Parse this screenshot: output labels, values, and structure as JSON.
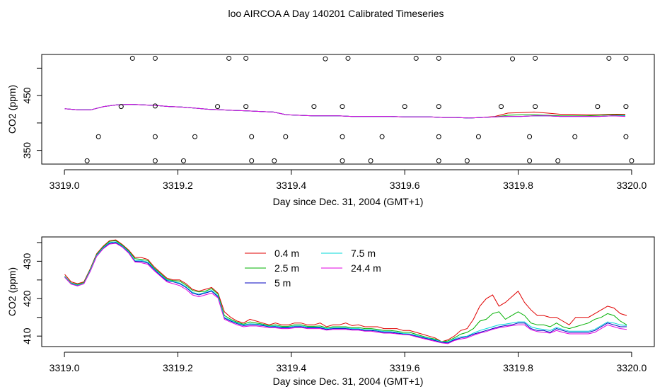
{
  "figure": {
    "title": "loo AIRCOA A  Day 140201  Calibrated Timeseries"
  },
  "colors": {
    "0.4 m": "#e00000",
    "2.5 m": "#00b000",
    "5 m": "#0000c0",
    "7.5 m": "#00d8d8",
    "24.4 m": "#e000e0"
  },
  "chart_data": [
    {
      "id": "top",
      "type": "line+scatter",
      "title": "",
      "xlabel": "Day since Dec. 31, 2004 (GMT+1)",
      "ylabel": "CO2 (ppm)",
      "xlim": [
        3318.96,
        3320.04
      ],
      "ylim": [
        325,
        525
      ],
      "xticks": [
        3319.0,
        3319.2,
        3319.4,
        3319.6,
        3319.8,
        3320.0
      ],
      "xtick_labels": [
        "3319.0",
        "3319.2",
        "3319.4",
        "3319.6",
        "3319.8",
        "3320.0"
      ],
      "yticks": [
        350,
        400,
        450,
        500
      ],
      "ytick_labels": [
        "350",
        "",
        "450",
        ""
      ],
      "series": [
        {
          "name": "0.4 m",
          "values": [
            426,
            424,
            424,
            430,
            433,
            434,
            433,
            432,
            430,
            429,
            427,
            425,
            424,
            423,
            422,
            421,
            420,
            415,
            414,
            413,
            413,
            413,
            412,
            412,
            412,
            412,
            411,
            411,
            411,
            410,
            410,
            409,
            410,
            412,
            418,
            419,
            420,
            418,
            416,
            416,
            415,
            415,
            416,
            416
          ]
        },
        {
          "name": "2.5 m",
          "values": [
            426,
            424,
            424,
            430,
            433,
            434,
            433,
            432,
            430,
            429,
            427,
            425,
            424,
            423,
            422,
            421,
            420,
            415,
            414,
            413,
            413,
            413,
            412,
            412,
            412,
            412,
            411,
            411,
            411,
            410,
            410,
            409,
            410,
            411,
            414,
            415,
            415,
            414,
            413,
            413,
            413,
            414,
            415,
            414
          ]
        },
        {
          "name": "5 m",
          "values": [
            426,
            424,
            424,
            430,
            433,
            434,
            433,
            432,
            430,
            429,
            427,
            425,
            424,
            423,
            422,
            421,
            420,
            415,
            414,
            413,
            413,
            413,
            412,
            412,
            412,
            412,
            411,
            411,
            411,
            410,
            410,
            409,
            410,
            411,
            412,
            412,
            413,
            413,
            412,
            412,
            412,
            412,
            413,
            413
          ]
        },
        {
          "name": "7.5 m",
          "values": [
            426,
            424,
            424,
            430,
            433,
            434,
            433,
            432,
            430,
            429,
            427,
            425,
            424,
            423,
            422,
            421,
            420,
            415,
            414,
            413,
            413,
            413,
            412,
            412,
            412,
            412,
            411,
            411,
            411,
            410,
            410,
            409,
            410,
            411,
            412,
            412,
            413,
            413,
            412,
            412,
            412,
            412,
            413,
            413
          ]
        },
        {
          "name": "24.4 m",
          "values": [
            426,
            424,
            424,
            430,
            433,
            434,
            433,
            432,
            430,
            429,
            427,
            425,
            424,
            423,
            422,
            421,
            420,
            415,
            414,
            413,
            413,
            413,
            412,
            412,
            412,
            412,
            411,
            411,
            411,
            410,
            410,
            409,
            410,
            411,
            412,
            412,
            413,
            413,
            412,
            412,
            412,
            412,
            413,
            412
          ]
        }
      ],
      "points": [
        {
          "x": 3319.12,
          "y": 518
        },
        {
          "x": 3319.16,
          "y": 518
        },
        {
          "x": 3319.29,
          "y": 518
        },
        {
          "x": 3319.32,
          "y": 518
        },
        {
          "x": 3319.46,
          "y": 517
        },
        {
          "x": 3319.5,
          "y": 518
        },
        {
          "x": 3319.62,
          "y": 518
        },
        {
          "x": 3319.66,
          "y": 518
        },
        {
          "x": 3319.79,
          "y": 517
        },
        {
          "x": 3319.83,
          "y": 518
        },
        {
          "x": 3319.96,
          "y": 518
        },
        {
          "x": 3319.99,
          "y": 518
        },
        {
          "x": 3319.1,
          "y": 430
        },
        {
          "x": 3319.16,
          "y": 431
        },
        {
          "x": 3319.27,
          "y": 430
        },
        {
          "x": 3319.32,
          "y": 430
        },
        {
          "x": 3319.44,
          "y": 430
        },
        {
          "x": 3319.49,
          "y": 430
        },
        {
          "x": 3319.6,
          "y": 430
        },
        {
          "x": 3319.66,
          "y": 430
        },
        {
          "x": 3319.77,
          "y": 430
        },
        {
          "x": 3319.83,
          "y": 430
        },
        {
          "x": 3319.94,
          "y": 430
        },
        {
          "x": 3319.99,
          "y": 430
        },
        {
          "x": 3319.06,
          "y": 375
        },
        {
          "x": 3319.16,
          "y": 375
        },
        {
          "x": 3319.23,
          "y": 375
        },
        {
          "x": 3319.33,
          "y": 375
        },
        {
          "x": 3319.39,
          "y": 375
        },
        {
          "x": 3319.49,
          "y": 375
        },
        {
          "x": 3319.56,
          "y": 375
        },
        {
          "x": 3319.66,
          "y": 375
        },
        {
          "x": 3319.73,
          "y": 375
        },
        {
          "x": 3319.82,
          "y": 375
        },
        {
          "x": 3319.9,
          "y": 375
        },
        {
          "x": 3319.99,
          "y": 375
        },
        {
          "x": 3319.04,
          "y": 331
        },
        {
          "x": 3319.16,
          "y": 331
        },
        {
          "x": 3319.21,
          "y": 331
        },
        {
          "x": 3319.33,
          "y": 331
        },
        {
          "x": 3319.37,
          "y": 331
        },
        {
          "x": 3319.49,
          "y": 331
        },
        {
          "x": 3319.54,
          "y": 331
        },
        {
          "x": 3319.66,
          "y": 331
        },
        {
          "x": 3319.71,
          "y": 331
        },
        {
          "x": 3319.82,
          "y": 331
        },
        {
          "x": 3319.87,
          "y": 331
        },
        {
          "x": 3320.0,
          "y": 331
        }
      ]
    },
    {
      "id": "bottom",
      "type": "line",
      "title": "",
      "xlabel": "Day since Dec. 31, 2004 (GMT+1)",
      "ylabel": "CO2 (ppm)",
      "xlim": [
        3318.96,
        3320.04
      ],
      "ylim": [
        407.2,
        436.5
      ],
      "xticks": [
        3319.0,
        3319.2,
        3319.4,
        3319.6,
        3319.8,
        3320.0
      ],
      "xtick_labels": [
        "3319.0",
        "3319.2",
        "3319.4",
        "3319.6",
        "3319.8",
        "3320.0"
      ],
      "yticks": [
        410,
        415,
        420,
        425,
        430,
        435
      ],
      "ytick_labels": [
        "410",
        "",
        "420",
        "",
        "430",
        ""
      ],
      "legend": {
        "position": "top-center",
        "columns": 2
      },
      "series": [
        {
          "name": "0.4 m",
          "values": [
            426.5,
            424.5,
            424.0,
            424.5,
            428.0,
            432.0,
            434.0,
            435.5,
            435.7,
            434.5,
            433.0,
            431.0,
            431.0,
            430.5,
            428.5,
            427.0,
            425.5,
            425.0,
            425.0,
            424.0,
            422.5,
            422.0,
            422.5,
            423.0,
            421.5,
            416.5,
            415.0,
            414.0,
            413.5,
            414.5,
            414.0,
            413.5,
            413.0,
            413.5,
            413.0,
            413.0,
            413.5,
            413.5,
            413.0,
            413.0,
            413.5,
            412.5,
            413.0,
            413.0,
            413.5,
            412.8,
            413.0,
            412.5,
            412.5,
            412.5,
            412.0,
            412.0,
            412.0,
            411.5,
            411.5,
            411.0,
            410.5,
            410.0,
            409.5,
            408.5,
            409.0,
            410.0,
            411.5,
            412.0,
            414.5,
            418.0,
            420.0,
            421.0,
            418.0,
            419.0,
            420.5,
            422.0,
            419.0,
            417.0,
            415.5,
            415.5,
            415.0,
            415.0,
            414.0,
            413.0,
            415.0,
            415.0,
            415.0,
            416.0,
            417.0,
            418.0,
            417.5,
            416.0,
            415.5
          ]
        },
        {
          "name": "2.5 m",
          "values": [
            426.0,
            424.2,
            423.8,
            424.3,
            427.8,
            431.8,
            433.8,
            435.3,
            435.5,
            434.3,
            432.8,
            430.7,
            430.5,
            430.2,
            428.2,
            426.7,
            425.2,
            424.8,
            424.7,
            423.6,
            422.2,
            421.8,
            422.0,
            422.7,
            421.2,
            415.5,
            414.5,
            413.7,
            413.2,
            413.8,
            413.5,
            413.2,
            412.8,
            413.0,
            412.6,
            412.6,
            413.0,
            413.0,
            412.6,
            412.6,
            412.7,
            412.2,
            412.5,
            412.5,
            412.5,
            412.2,
            412.3,
            412.0,
            412.0,
            411.8,
            411.5,
            411.5,
            411.3,
            411.0,
            411.0,
            410.5,
            410.0,
            409.5,
            409.2,
            408.5,
            408.7,
            409.5,
            410.5,
            411.0,
            412.0,
            414.0,
            414.5,
            416.0,
            416.5,
            414.5,
            415.5,
            416.5,
            415.5,
            413.5,
            413.0,
            413.0,
            412.5,
            413.5,
            412.5,
            412.0,
            412.5,
            413.0,
            413.5,
            414.5,
            415.0,
            416.0,
            415.5,
            414.0,
            413.0
          ]
        },
        {
          "name": "5 m",
          "values": [
            425.8,
            424.0,
            423.5,
            424.0,
            427.5,
            431.5,
            433.5,
            434.8,
            435.0,
            434.0,
            432.5,
            430.0,
            430.0,
            429.5,
            427.8,
            426.2,
            424.8,
            424.5,
            424.0,
            423.0,
            421.5,
            421.0,
            421.5,
            422.0,
            420.5,
            414.8,
            414.0,
            413.3,
            412.8,
            413.0,
            413.0,
            412.8,
            412.5,
            412.5,
            412.2,
            412.2,
            412.5,
            412.5,
            412.2,
            412.2,
            412.2,
            411.8,
            412.0,
            412.0,
            412.0,
            411.8,
            411.8,
            411.5,
            411.5,
            411.3,
            411.0,
            411.0,
            410.8,
            410.6,
            410.5,
            410.0,
            409.6,
            409.2,
            408.8,
            408.3,
            408.2,
            409.0,
            409.5,
            409.8,
            410.5,
            411.0,
            411.5,
            412.0,
            412.5,
            412.8,
            413.0,
            413.5,
            413.5,
            412.0,
            411.5,
            411.5,
            411.0,
            412.0,
            411.5,
            411.0,
            411.0,
            411.0,
            411.0,
            411.5,
            412.5,
            413.5,
            413.0,
            412.5,
            412.5
          ]
        },
        {
          "name": "7.5 m",
          "values": [
            425.9,
            424.1,
            423.6,
            424.1,
            427.6,
            431.6,
            433.6,
            435.0,
            435.2,
            434.1,
            432.6,
            430.2,
            430.2,
            429.8,
            428.0,
            426.4,
            425.0,
            424.6,
            424.2,
            423.2,
            421.7,
            421.2,
            421.7,
            422.2,
            420.8,
            415.0,
            414.2,
            413.5,
            413.0,
            413.3,
            413.2,
            413.0,
            412.6,
            412.7,
            412.4,
            412.4,
            412.7,
            412.7,
            412.4,
            412.4,
            412.4,
            412.0,
            412.2,
            412.2,
            412.2,
            412.0,
            412.0,
            411.7,
            411.7,
            411.5,
            411.2,
            411.2,
            411.0,
            410.7,
            410.6,
            410.2,
            409.8,
            409.4,
            409.0,
            408.5,
            408.4,
            409.2,
            409.8,
            410.0,
            410.8,
            411.5,
            412.0,
            412.5,
            413.0,
            413.2,
            413.5,
            413.8,
            413.8,
            412.5,
            412.0,
            411.8,
            411.5,
            412.3,
            411.8,
            411.3,
            411.3,
            411.3,
            411.3,
            411.8,
            412.8,
            413.8,
            413.5,
            413.0,
            412.8
          ]
        },
        {
          "name": "24.4 m",
          "values": [
            425.7,
            423.9,
            423.4,
            424.0,
            427.3,
            431.3,
            433.3,
            434.6,
            434.8,
            433.8,
            432.2,
            429.8,
            429.6,
            429.2,
            427.5,
            426.0,
            424.5,
            424.0,
            423.5,
            422.5,
            421.0,
            420.5,
            421.0,
            421.5,
            420.2,
            414.5,
            413.7,
            413.0,
            412.5,
            412.7,
            412.7,
            412.5,
            412.2,
            412.2,
            412.0,
            412.0,
            412.2,
            412.3,
            412.0,
            412.0,
            412.0,
            411.6,
            411.8,
            411.8,
            411.8,
            411.6,
            411.6,
            411.3,
            411.3,
            411.0,
            410.8,
            410.8,
            410.6,
            410.4,
            410.3,
            409.8,
            409.4,
            409.0,
            408.6,
            408.2,
            408.0,
            408.8,
            409.2,
            409.5,
            410.2,
            410.8,
            411.2,
            411.8,
            412.2,
            412.5,
            412.8,
            413.0,
            413.0,
            411.7,
            411.2,
            411.0,
            410.8,
            411.5,
            411.0,
            410.6,
            410.6,
            410.6,
            410.6,
            411.0,
            412.0,
            413.0,
            412.5,
            412.0,
            411.8
          ]
        }
      ]
    }
  ]
}
